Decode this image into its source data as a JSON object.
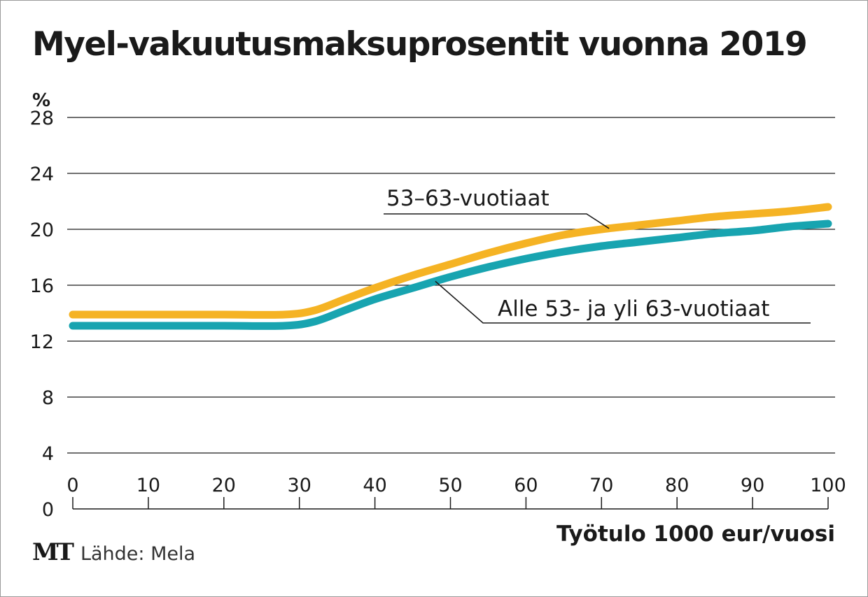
{
  "logo": "MT",
  "source": "Lähde: Mela",
  "chart_data": {
    "type": "line",
    "title": "Myel-vakuutusmaksuprosentit vuonna 2019",
    "ylabel": "%",
    "xlabel": "Työtulo 1000 eur/vuosi",
    "xlim": [
      0,
      100
    ],
    "ylim": [
      0,
      28
    ],
    "x_ticks": [
      0,
      10,
      20,
      30,
      40,
      50,
      60,
      70,
      80,
      90,
      100
    ],
    "y_ticks": [
      0,
      4,
      8,
      12,
      16,
      20,
      24,
      28
    ],
    "grid": true,
    "series": [
      {
        "name": "53–63-vuotiaat",
        "color": "#f5b324",
        "x": [
          0,
          10,
          20,
          28,
          32,
          36,
          40,
          45,
          50,
          55,
          60,
          65,
          70,
          75,
          80,
          85,
          90,
          95,
          100
        ],
        "values": [
          13.9,
          13.9,
          13.9,
          13.9,
          14.2,
          15.0,
          15.8,
          16.7,
          17.5,
          18.3,
          19.0,
          19.6,
          20.0,
          20.3,
          20.6,
          20.9,
          21.1,
          21.3,
          21.6
        ]
      },
      {
        "name": "Alle 53- ja yli 63-vuotiaat",
        "color": "#18a4b0",
        "x": [
          0,
          10,
          20,
          28,
          32,
          36,
          40,
          45,
          50,
          55,
          60,
          65,
          70,
          75,
          80,
          85,
          90,
          95,
          100
        ],
        "values": [
          13.1,
          13.1,
          13.1,
          13.1,
          13.4,
          14.2,
          15.0,
          15.8,
          16.6,
          17.3,
          17.9,
          18.4,
          18.8,
          19.1,
          19.4,
          19.7,
          19.9,
          20.2,
          20.4
        ]
      }
    ]
  }
}
